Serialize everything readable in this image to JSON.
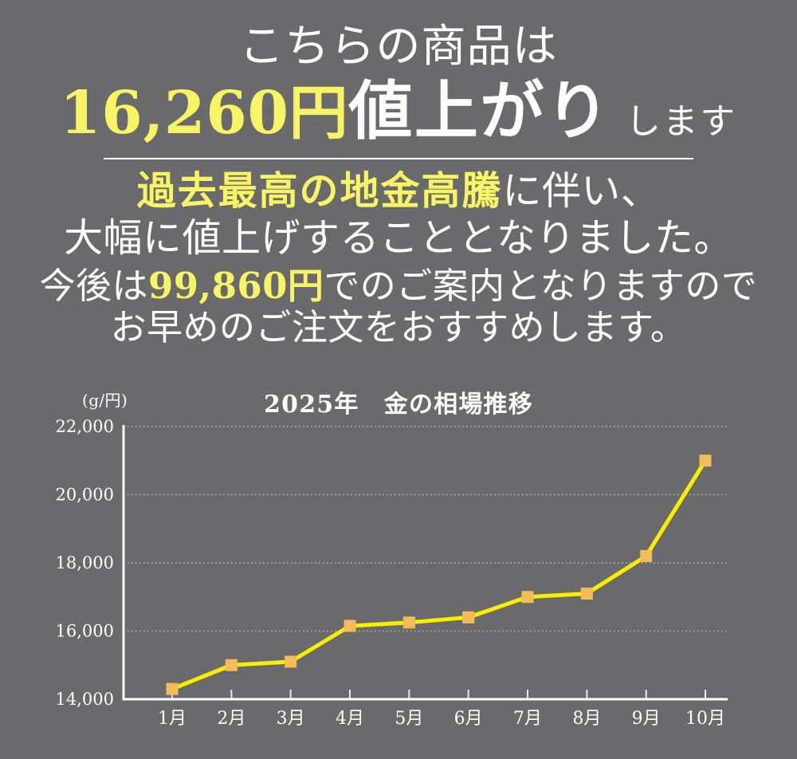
{
  "hero": {
    "line1": "こちらの商品は",
    "line2": {
      "price": "16,260円",
      "emphasis": "値上がり",
      "suffix": "します"
    },
    "line3": {
      "highlight": "過去最高の地金高騰",
      "rest": "に伴い、"
    },
    "line4": "大幅に値上げすることとなりました。",
    "line5": {
      "pre": "今後は",
      "price": "99,860円",
      "post": "でのご案内となりますので"
    },
    "line6": "お早めのご注文をおすすめします。"
  },
  "chart": {
    "unit_label": "(g/円)",
    "title": "2025年　金の相場推移"
  },
  "chart_data": {
    "type": "line",
    "title": "2025年　金の相場推移",
    "unit_label": "(g/円)",
    "xlabel": "",
    "ylabel": "g/円",
    "categories": [
      "1月",
      "2月",
      "3月",
      "4月",
      "5月",
      "6月",
      "7月",
      "8月",
      "9月",
      "10月"
    ],
    "values": [
      14300,
      15000,
      15100,
      16150,
      16250,
      16400,
      17000,
      17100,
      18200,
      21000
    ],
    "ylim": [
      14000,
      22000
    ],
    "y_ticks": [
      14000,
      16000,
      18000,
      20000,
      22000
    ],
    "y_tick_labels": [
      "14,000",
      "16,000",
      "18,000",
      "20,000",
      "22,000"
    ],
    "grid": "horizontal-dotted",
    "legend": "none",
    "marker_shape": "square"
  },
  "colors": {
    "background": "#6a696b",
    "text": "#ffffff",
    "highlight_yellow": "#f7f565",
    "chart_line": "#f8ee00",
    "chart_marker": "#f2bc59",
    "gridline": "#b8b8ba",
    "axis": "#ffffff"
  }
}
